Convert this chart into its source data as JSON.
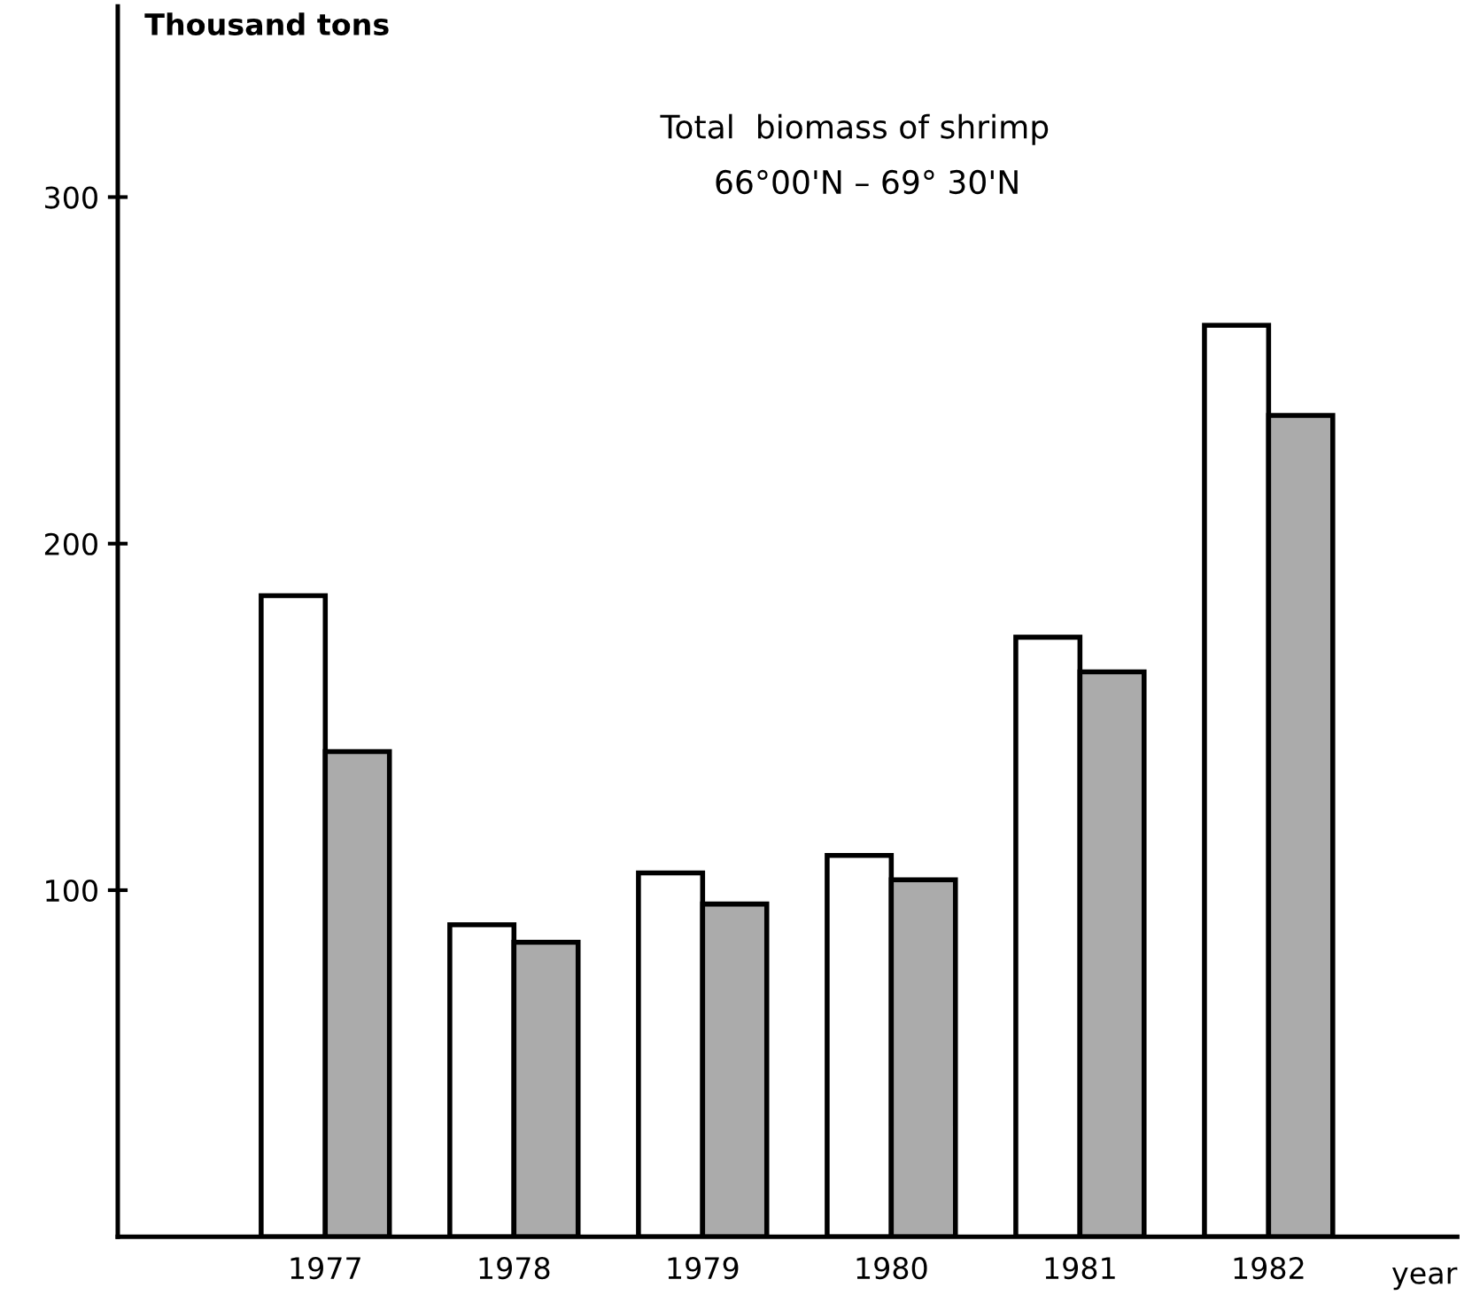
{
  "chart_data": {
    "type": "bar",
    "title": "Total  biomass of shrimp",
    "subtitle": "66°00'N – 69° 30'N",
    "ylabel": "Thousand tons",
    "xlabel": "year",
    "categories": [
      "1977",
      "1978",
      "1979",
      "1980",
      "1981",
      "1982"
    ],
    "series": [
      {
        "color": "#ffffff",
        "values": [
          185,
          90,
          105,
          110,
          173,
          263
        ]
      },
      {
        "color": "#ababab",
        "values": [
          140,
          85,
          96,
          103,
          163,
          237
        ]
      }
    ],
    "ylim": [
      0,
      355
    ],
    "yticks": [
      100,
      200,
      300
    ],
    "grid": false,
    "legend": false
  }
}
